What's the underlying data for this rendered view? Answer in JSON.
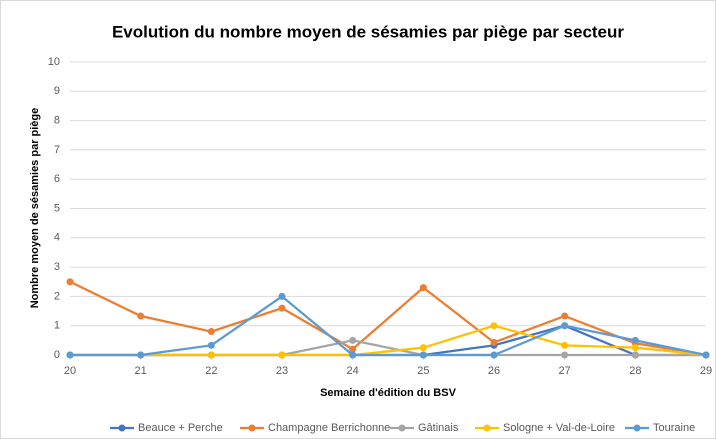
{
  "chart_data": {
    "type": "line",
    "title": "Evolution du nombre moyen de sésamies par piège par secteur",
    "x_label": "Semaine d'édition du BSV",
    "y_label": "Nombre moyen de sésamies par piège",
    "x": [
      20,
      21,
      22,
      23,
      24,
      25,
      26,
      27,
      28,
      29
    ],
    "series": [
      {
        "name": "Beauce + Perche",
        "color": "#4472c4",
        "values": [
          0,
          0,
          0,
          0,
          0,
          0,
          0.33,
          1,
          0,
          0
        ]
      },
      {
        "name": "Champagne Berrichonne",
        "color": "#ed7d31",
        "values": [
          2.5,
          1.33,
          0.8,
          1.6,
          0.2,
          2.3,
          0.43,
          1.33,
          0.4,
          0
        ]
      },
      {
        "name": "Gâtinais",
        "color": "#a5a5a5",
        "values": [
          0,
          0,
          0,
          0,
          0.5,
          0,
          0,
          0,
          0,
          0
        ]
      },
      {
        "name": "Sologne + Val-de-Loire",
        "color": "#ffc000",
        "values": [
          0,
          0,
          0,
          0,
          0,
          0.25,
          1,
          0.33,
          0.25,
          0
        ]
      },
      {
        "name": "Touraine",
        "color": "#5b9bd5",
        "values": [
          0,
          0,
          0.33,
          2,
          0,
          0,
          0,
          1,
          0.5,
          0
        ]
      }
    ],
    "xlim": [
      20,
      29
    ],
    "xticks": [
      20,
      21,
      22,
      23,
      24,
      25,
      26,
      27,
      28,
      29
    ],
    "ylim": [
      0,
      10
    ],
    "yticks": [
      0,
      1,
      2,
      3,
      4,
      5,
      6,
      7,
      8,
      9,
      10
    ],
    "grid": true,
    "legend": "bottom"
  }
}
